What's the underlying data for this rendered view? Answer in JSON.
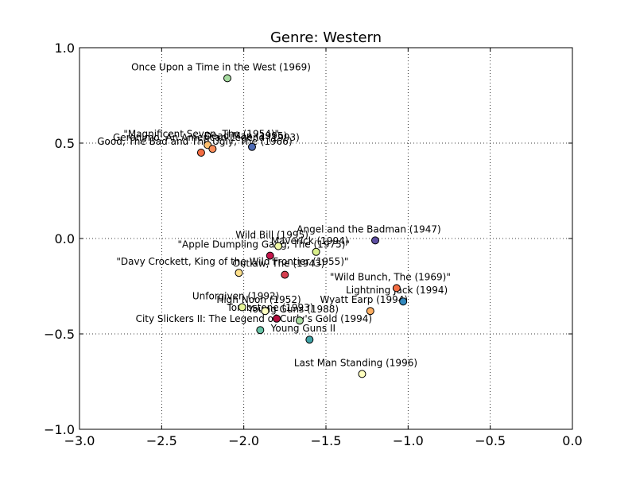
{
  "chart_data": {
    "type": "scatter",
    "title": "Genre: Western",
    "xlabel": "",
    "ylabel": "",
    "xlim": [
      -3.0,
      0.0
    ],
    "ylim": [
      -1.0,
      1.0
    ],
    "xticks": [
      -3.0,
      -2.5,
      -2.0,
      -1.5,
      -1.0,
      -0.5,
      0.0
    ],
    "yticks": [
      -1.0,
      -0.5,
      0.0,
      0.5,
      1.0
    ],
    "xtick_labels": [
      "−3.0",
      "−2.5",
      "−2.0",
      "−1.5",
      "−1.0",
      "−0.5",
      "0.0"
    ],
    "ytick_labels": [
      "−1.0",
      "−0.5",
      "0.0",
      "0.5",
      "1.0"
    ],
    "grid": true,
    "points": [
      {
        "label": "Once Upon a Time in the West (1969)",
        "x": -2.1,
        "y": 0.84,
        "color": "#a6dba0"
      },
      {
        "label": "\"Magnificent Seven, The (1954)\"",
        "x": -2.22,
        "y": 0.49,
        "color": "#fdbf6f"
      },
      {
        "label": "Geronimo: An American Legend (1993)",
        "x": -2.19,
        "y": 0.47,
        "color": "#fc8d59"
      },
      {
        "label": "Good, The Bad and The Ugly, The (1966)",
        "x": -2.26,
        "y": 0.45,
        "color": "#f46d43"
      },
      {
        "label": "Dead Man (1995)",
        "x": -1.95,
        "y": 0.48,
        "color": "#4e6bb5"
      },
      {
        "label": "Angel and the Badman (1947)",
        "x": -1.2,
        "y": -0.01,
        "color": "#5e4fa2"
      },
      {
        "label": "Wild Bill (1995)",
        "x": -1.79,
        "y": -0.04,
        "color": "#f0f8a6"
      },
      {
        "label": "Maverick (1994)",
        "x": -1.56,
        "y": -0.07,
        "color": "#d9ef8b"
      },
      {
        "label": "\"Apple Dumpling Gang, The (1975)\"",
        "x": -1.84,
        "y": -0.09,
        "color": "#c4154b"
      },
      {
        "label": "\"Davy Crockett, King of the Wild Frontier (1955)\"",
        "x": -2.03,
        "y": -0.18,
        "color": "#fee08b"
      },
      {
        "label": "Outlaw, The (1943)",
        "x": -1.75,
        "y": -0.19,
        "color": "#d53e4f"
      },
      {
        "label": "\"Wild Bunch, The (1969)\"",
        "x": -1.07,
        "y": -0.26,
        "color": "#f46d43"
      },
      {
        "label": "Lightning Jack (1994)",
        "x": -1.03,
        "y": -0.33,
        "color": "#3288bd"
      },
      {
        "label": "Wyatt Earp (1994)",
        "x": -1.23,
        "y": -0.38,
        "color": "#fdae61"
      },
      {
        "label": "Unforgiven (1992)",
        "x": -2.01,
        "y": -0.36,
        "color": "#e6f598"
      },
      {
        "label": "High Noon (1952)",
        "x": -1.87,
        "y": -0.38,
        "color": "#ffffbf"
      },
      {
        "label": "Young Guns (1988)",
        "x": -1.66,
        "y": -0.43,
        "color": "#abdda4"
      },
      {
        "label": "Tombstone (1993)",
        "x": -1.8,
        "y": -0.42,
        "color": "#b2103f"
      },
      {
        "label": "City Slickers II: The Legend of Curly's Gold (1994)",
        "x": -1.9,
        "y": -0.48,
        "color": "#66c2a5"
      },
      {
        "label": "Young Guns II",
        "x": -1.6,
        "y": -0.53,
        "color": "#3fa2a6"
      },
      {
        "label": "Last Man Standing (1996)",
        "x": -1.28,
        "y": -0.71,
        "color": "#ffffbf"
      }
    ]
  }
}
